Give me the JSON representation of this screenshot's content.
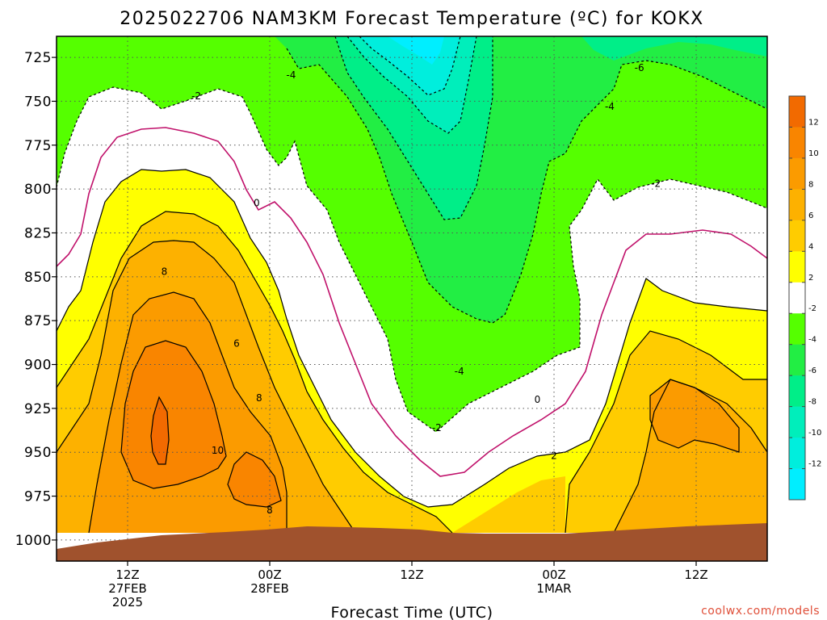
{
  "chart_data": {
    "type": "contour",
    "title": "2025022706 NAM3KM Forecast Temperature (ºC) for KOKX",
    "xlabel": "Forecast Time (UTC)",
    "ylabel": "",
    "y_ticks": [
      "725",
      "750",
      "775",
      "800",
      "825",
      "850",
      "875",
      "900",
      "925",
      "950",
      "975",
      "1000"
    ],
    "ylim": [
      1012,
      713
    ],
    "x_ticks": [
      {
        "hour": 12,
        "lines": [
          "12Z",
          "27FEB",
          "2025"
        ]
      },
      {
        "hour": 24,
        "lines": [
          "00Z",
          "28FEB"
        ]
      },
      {
        "hour": 36,
        "lines": [
          "12Z"
        ]
      },
      {
        "hour": 48,
        "lines": [
          "00Z",
          "1MAR"
        ]
      },
      {
        "hour": 60,
        "lines": [
          "12Z"
        ]
      }
    ],
    "xlim": [
      6,
      66
    ],
    "colorbar": {
      "ticks": [
        "12",
        "10",
        "8",
        "6",
        "4",
        "2",
        "-2",
        "-4",
        "-6",
        "-8",
        "-10",
        "-12"
      ],
      "bands": [
        {
          "range": "> 12",
          "color": "#f26a00"
        },
        {
          "range": "10 to 12",
          "color": "#f98500"
        },
        {
          "range": "8 to 10",
          "color": "#fb9b00"
        },
        {
          "range": "6 to 8",
          "color": "#fdb100"
        },
        {
          "range": "4 to 6",
          "color": "#ffcc00"
        },
        {
          "range": "2 to 4",
          "color": "#ffff00"
        },
        {
          "range": "-2 to 2",
          "color": "#ffffff"
        },
        {
          "range": "-4 to -2",
          "color": "#55ff00"
        },
        {
          "range": "-6 to -4",
          "color": "#22ee44"
        },
        {
          "range": "-8 to -6",
          "color": "#00ee88"
        },
        {
          "range": "-10 to -8",
          "color": "#00eebb"
        },
        {
          "range": "-12 to -10",
          "color": "#00eedd"
        },
        {
          "range": "< -12",
          "color": "#00eeff"
        }
      ]
    },
    "contour_labels": [
      {
        "text": "-4",
        "hour": 25.8,
        "pressure": 735
      },
      {
        "text": "-2",
        "hour": 17.8,
        "pressure": 747
      },
      {
        "text": "-6",
        "hour": 55.2,
        "pressure": 731
      },
      {
        "text": "-4",
        "hour": 52.7,
        "pressure": 753
      },
      {
        "text": "-2",
        "hour": 56.6,
        "pressure": 797
      },
      {
        "text": "0",
        "hour": 22.9,
        "pressure": 808
      },
      {
        "text": "8",
        "hour": 15.1,
        "pressure": 847
      },
      {
        "text": "6",
        "hour": 21.2,
        "pressure": 888
      },
      {
        "text": "8",
        "hour": 23.1,
        "pressure": 919
      },
      {
        "text": "10",
        "hour": 19.6,
        "pressure": 949
      },
      {
        "text": "8",
        "hour": 24.0,
        "pressure": 983
      },
      {
        "text": "-4",
        "hour": 40.0,
        "pressure": 904
      },
      {
        "text": "-2",
        "hour": 38.1,
        "pressure": 936
      },
      {
        "text": "0",
        "hour": 46.6,
        "pressure": 920
      },
      {
        "text": "2",
        "hour": 48.0,
        "pressure": 952
      }
    ],
    "series_colors": {
      "ground": "#a0522d",
      "zero_isotherm": "#c0106a",
      "frame": "#000000",
      "grid": "#555555"
    }
  },
  "footer": {
    "credit": "coolwx.com/models"
  }
}
